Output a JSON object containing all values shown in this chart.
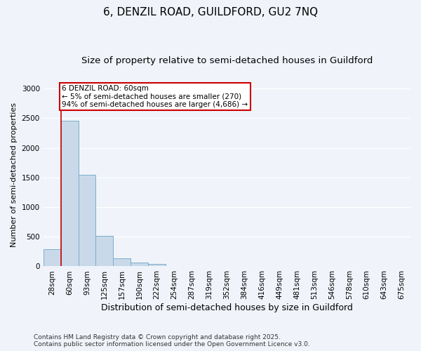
{
  "title1": "6, DENZIL ROAD, GUILDFORD, GU2 7NQ",
  "title2": "Size of property relative to semi-detached houses in Guildford",
  "xlabel": "Distribution of semi-detached houses by size in Guildford",
  "ylabel": "Number of semi-detached properties",
  "categories": [
    "28sqm",
    "60sqm",
    "93sqm",
    "125sqm",
    "157sqm",
    "190sqm",
    "222sqm",
    "254sqm",
    "287sqm",
    "319sqm",
    "352sqm",
    "384sqm",
    "416sqm",
    "449sqm",
    "481sqm",
    "513sqm",
    "546sqm",
    "578sqm",
    "610sqm",
    "643sqm",
    "675sqm"
  ],
  "values": [
    295,
    2460,
    1550,
    520,
    135,
    60,
    40,
    0,
    0,
    0,
    0,
    0,
    0,
    0,
    0,
    0,
    0,
    0,
    0,
    0,
    0
  ],
  "bar_color": "#c9d9ea",
  "bar_edge_color": "#7aaec8",
  "annotation_title": "6 DENZIL ROAD: 60sqm",
  "annotation_line1": "← 5% of semi-detached houses are smaller (270)",
  "annotation_line2": "94% of semi-detached houses are larger (4,686) →",
  "annotation_box_color": "#ffffff",
  "annotation_box_edge": "#cc0000",
  "red_line_color": "#cc0000",
  "footer1": "Contains HM Land Registry data © Crown copyright and database right 2025.",
  "footer2": "Contains public sector information licensed under the Open Government Licence v3.0.",
  "ylim": [
    0,
    3100
  ],
  "yticks": [
    0,
    500,
    1000,
    1500,
    2000,
    2500,
    3000
  ],
  "background_color": "#f0f4fa",
  "grid_color": "#ffffff",
  "title1_fontsize": 11,
  "title2_fontsize": 9.5,
  "ylabel_fontsize": 8,
  "xlabel_fontsize": 9,
  "tick_fontsize": 7.5,
  "footer_fontsize": 6.5,
  "annotation_fontsize": 7.5
}
